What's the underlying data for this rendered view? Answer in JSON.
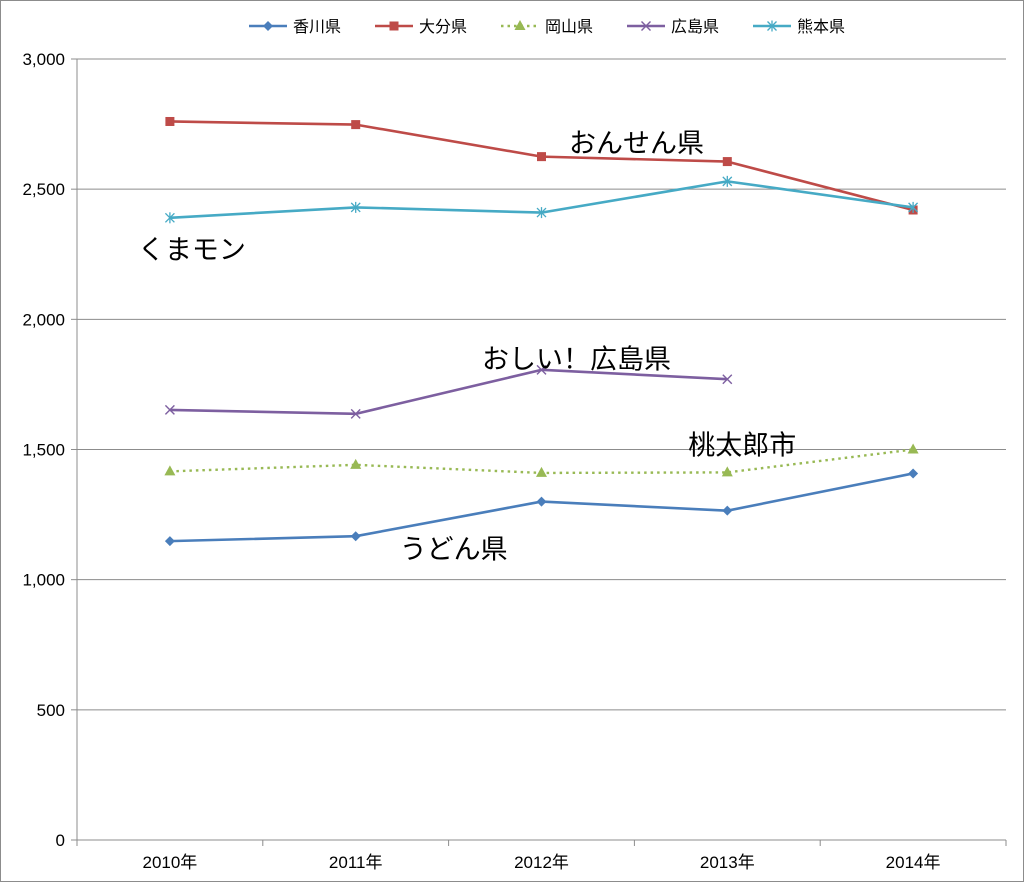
{
  "chart_data": {
    "type": "line",
    "title": "",
    "xlabel": "",
    "ylabel": "",
    "categories": [
      "2010年",
      "2011年",
      "2012年",
      "2013年",
      "2014年"
    ],
    "ylim": [
      0,
      3000
    ],
    "yticks": [
      0,
      500,
      1000,
      1500,
      2000,
      2500,
      3000
    ],
    "ytick_labels": [
      "0",
      "500",
      "1,000",
      "1,500",
      "2,000",
      "2,500",
      "3,000"
    ],
    "grid": true,
    "legend_position": "top",
    "series": [
      {
        "name": "香川県",
        "values": [
          1148,
          1167,
          1300,
          1265,
          1408
        ],
        "color": "#4a7ebb",
        "marker": "diamond",
        "dash": "solid"
      },
      {
        "name": "大分県",
        "values": [
          2760,
          2748,
          2625,
          2606,
          2420
        ],
        "color": "#be4b48",
        "marker": "square",
        "dash": "solid"
      },
      {
        "name": "岡山県",
        "values": [
          1416,
          1441,
          1410,
          1412,
          1500
        ],
        "color": "#98b954",
        "marker": "triangle",
        "dash": "dotted"
      },
      {
        "name": "広島県",
        "values": [
          1652,
          1637,
          1806,
          1770,
          null
        ],
        "color": "#7d5fa0",
        "marker": "x",
        "dash": "solid"
      },
      {
        "name": "熊本県",
        "values": [
          2390,
          2430,
          2410,
          2530,
          2430
        ],
        "color": "#46aac5",
        "marker": "star",
        "dash": "solid"
      }
    ],
    "annotations": [
      {
        "text": "おんせん県",
        "x": "2012年",
        "y": 2680
      },
      {
        "text": "くまモン",
        "x": "2010年",
        "y": 2270
      },
      {
        "text": "おしい！広島県",
        "x": "2012年",
        "y": 1850
      },
      {
        "text": "桃太郎市",
        "x": "2013年",
        "y": 1520
      },
      {
        "text": "うどん県",
        "x": "2011年",
        "y": 1120
      }
    ]
  }
}
